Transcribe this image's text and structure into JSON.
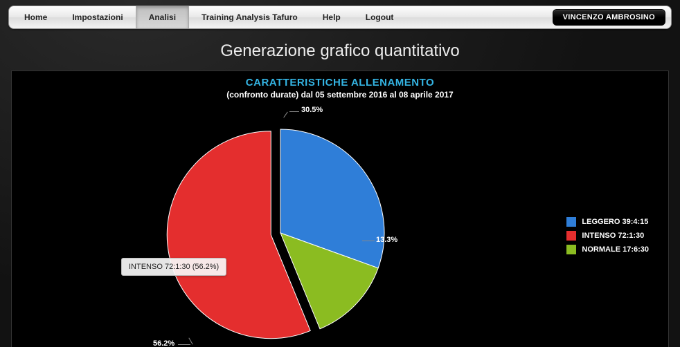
{
  "nav": {
    "items": [
      {
        "label": "Home"
      },
      {
        "label": "Impostazioni"
      },
      {
        "label": "Analisi",
        "active": true
      },
      {
        "label": "Training Analysis Tafuro"
      },
      {
        "label": "Help"
      },
      {
        "label": "Logout"
      }
    ],
    "user": "VINCENZO AMBROSINO"
  },
  "page": {
    "title": "Generazione grafico quantitativo"
  },
  "chart": {
    "type": "pie",
    "title": "CARATTERISTICHE ALLENAMENTO",
    "title_color": "#34b4e3",
    "subtitle": "(confronto durate) dal 05 settembre 2016 al 08 aprile 2017",
    "background_color": "#000000",
    "label_color": "#ffffff",
    "label_fontsize": 11,
    "slices": [
      {
        "key": "LEGGERO",
        "time": "39:4:15",
        "percent": 30.5,
        "color": "#2f7ed8"
      },
      {
        "key": "INTENSO",
        "time": "72:1:30",
        "percent": 56.2,
        "color": "#e42e2e",
        "exploded": true
      },
      {
        "key": "NORMALE",
        "time": "17:6:30",
        "percent": 13.3,
        "color": "#8bbc21"
      }
    ],
    "legend": {
      "items": [
        "LEGGERO 39:4:15",
        "INTENSO 72:1:30",
        "NORMALE 17:6:30"
      ]
    },
    "data_labels": {
      "top": "30.5%",
      "right": "13.3%",
      "bottom": "56.2%"
    },
    "tooltip": "INTENSO 72:1:30 (56.2%)"
  }
}
